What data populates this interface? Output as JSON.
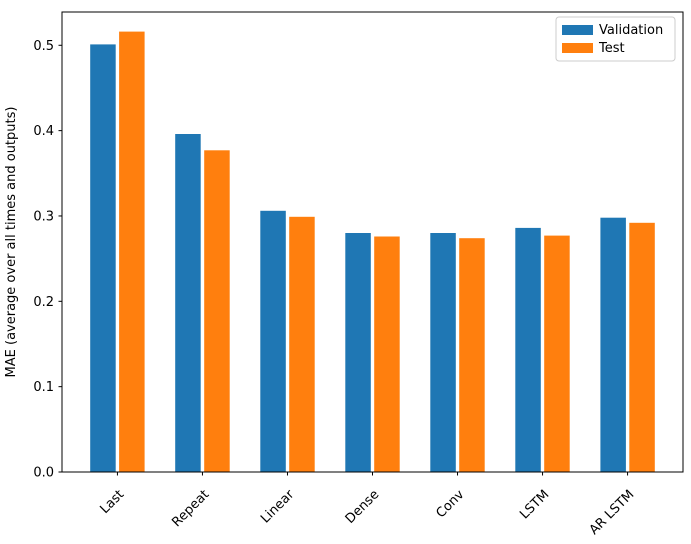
{
  "chart_data": {
    "type": "bar",
    "title": "",
    "xlabel": "",
    "ylabel": "MAE (average over all times and outputs)",
    "categories": [
      "Last",
      "Repeat",
      "Linear",
      "Dense",
      "Conv",
      "LSTM",
      "AR LSTM"
    ],
    "series": [
      {
        "name": "Validation",
        "color": "#1f77b4",
        "values": [
          0.501,
          0.396,
          0.306,
          0.28,
          0.28,
          0.286,
          0.298
        ]
      },
      {
        "name": "Test",
        "color": "#ff7f0e",
        "values": [
          0.516,
          0.377,
          0.299,
          0.276,
          0.274,
          0.277,
          0.292
        ]
      }
    ],
    "ylim": [
      0,
      0.539
    ],
    "xlim": [
      -0.652,
      6.652
    ],
    "yticks": [
      0.0,
      0.1,
      0.2,
      0.3,
      0.4,
      0.5
    ],
    "ytick_labels": [
      "0.0",
      "0.1",
      "0.2",
      "0.3",
      "0.4",
      "0.5"
    ],
    "bar_width": 0.3,
    "bar_offset": 0.17,
    "xtick_rotation": 45,
    "grid": false,
    "legend": {
      "position": "upper right",
      "entries": [
        "Validation",
        "Test"
      ]
    },
    "colors": {
      "background": "#ffffff",
      "spine": "#000000",
      "legend_border": "#cccccc"
    }
  }
}
